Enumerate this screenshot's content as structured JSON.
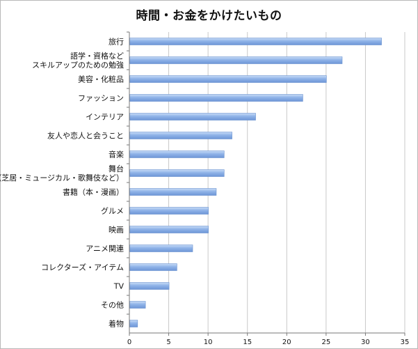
{
  "chart_data": {
    "type": "bar",
    "orientation": "horizontal",
    "title": "時間・お金をかけたいもの",
    "xlabel": "",
    "ylabel": "",
    "xlim": [
      0,
      35
    ],
    "xticks": [
      0,
      5,
      10,
      15,
      20,
      25,
      30,
      35
    ],
    "grid": true,
    "legend": "none",
    "bar_color": "#8fb3e8",
    "categories": [
      "旅行",
      "語学・資格など\nスキルアップのための勉強",
      "美容・化粧品",
      "ファッション",
      "インテリア",
      "友人や恋人と会うこと",
      "音楽",
      "舞台\n（芝居・ミュージカル・歌舞伎など）",
      "書籍（本・漫画）",
      "グルメ",
      "映画",
      "アニメ関連",
      "コレクターズ・アイテム",
      "TV",
      "その他",
      "着物"
    ],
    "values": [
      32,
      27,
      25,
      22,
      16,
      13,
      12,
      12,
      11,
      10,
      10,
      8,
      6,
      5,
      2,
      1
    ]
  }
}
